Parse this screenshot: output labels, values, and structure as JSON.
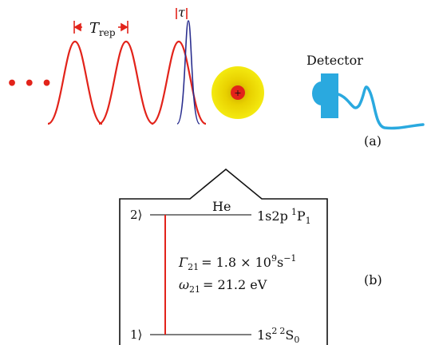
{
  "panel_a": {
    "ellipsis": "• • •",
    "trep_symbol": "T",
    "trep_subscript": "rep",
    "tau_symbol": "τ",
    "detector_label": "Detector",
    "panel_label": "(a)",
    "colors": {
      "pulse": "#e2231a",
      "probe": "#2b2f8f",
      "atom_outer": "#f2e600",
      "atom_mid": "#c8a400",
      "atom_core": "#e2231a",
      "detector": "#2aa9df"
    }
  },
  "panel_b": {
    "species": "He",
    "upper_state_label": "2⟩",
    "lower_state_label": "1⟩",
    "upper_term": {
      "config": "1s2p",
      "mult": "1",
      "term": "P",
      "j": "1"
    },
    "lower_term": {
      "config": "1s",
      "config_sup": "2",
      "mult": "2",
      "term": "S",
      "j": "0"
    },
    "gamma_symbol": "Γ",
    "gamma_sub": "21",
    "gamma_value": "= 1.8 × 10",
    "gamma_exp": "9",
    "gamma_unit": "s",
    "gamma_unit_exp": "−1",
    "omega_symbol": "ω",
    "omega_sub": "21",
    "omega_value": "= 21.2 eV",
    "panel_label": "(b)",
    "colors": {
      "transition": "#e2231a",
      "level": "#555555",
      "box": "#111111"
    }
  }
}
